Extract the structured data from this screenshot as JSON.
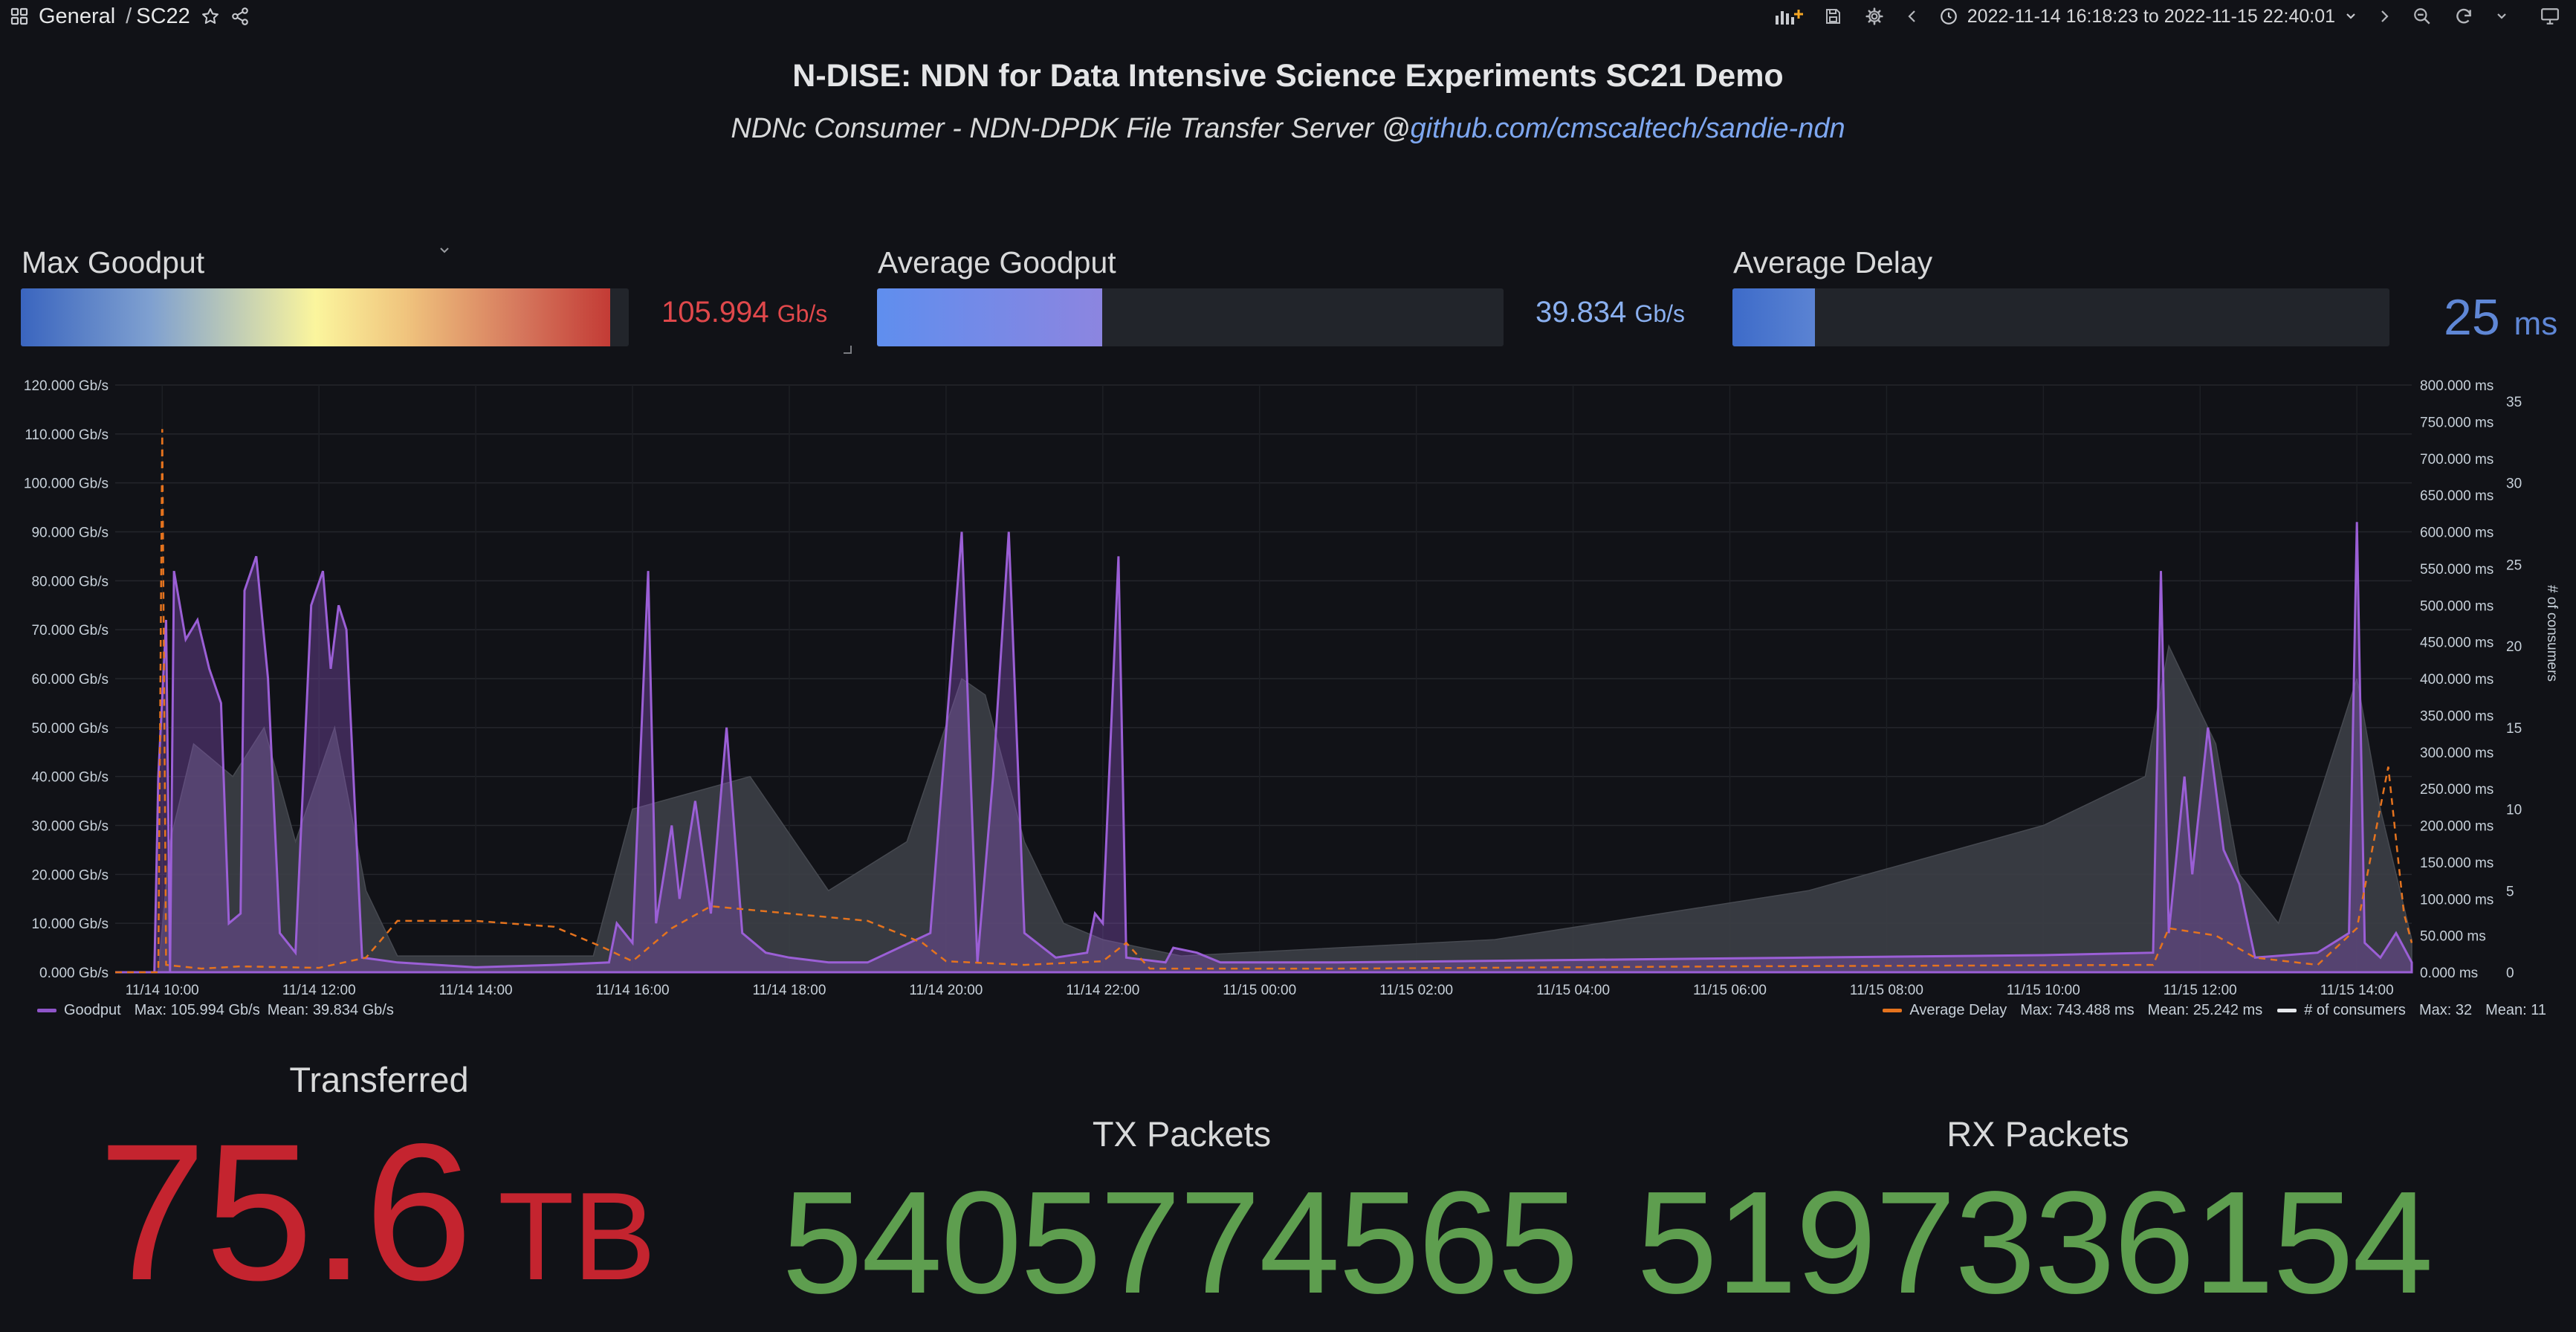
{
  "breadcrumb": {
    "folder": "General",
    "separator": "/",
    "dashboard": "SC22"
  },
  "toolbar": {
    "time_range": "2022-11-14 16:18:23 to 2022-11-15 22:40:01"
  },
  "header": {
    "title": "N-DISE: NDN for Data Intensive Science Experiments SC21 Demo",
    "subtitle_prefix": "NDNc Consumer - NDN-DPDK File Transfer Server @",
    "subtitle_link": "github.com/cmscaltech/sandie-ndn"
  },
  "gauges": [
    {
      "title": "Max Goodput",
      "value": "105.994",
      "unit": "Gb/s",
      "fraction": 0.97,
      "value_color": "#e0484b",
      "fill": "gradient"
    },
    {
      "title": "Average Goodput",
      "value": "39.834",
      "unit": "Gb/s",
      "fraction": 0.36,
      "value_color": "#8ab0f0",
      "fill": "blue-purple"
    },
    {
      "title": "Average Delay",
      "value": "25",
      "unit": "ms",
      "fraction": 0.125,
      "value_color": "#5f87d6",
      "fill": "blue"
    }
  ],
  "chart_data": {
    "type": "line",
    "x_ticks": [
      "11/14 10:00",
      "11/14 12:00",
      "11/14 14:00",
      "11/14 16:00",
      "11/14 18:00",
      "11/14 20:00",
      "11/14 22:00",
      "11/15 00:00",
      "11/15 02:00",
      "11/15 04:00",
      "11/15 06:00",
      "11/15 08:00",
      "11/15 10:00",
      "11/15 12:00",
      "11/15 14:00"
    ],
    "y_left_ticks": [
      "0.000 Gb/s",
      "10.000 Gb/s",
      "20.000 Gb/s",
      "30.000 Gb/s",
      "40.000 Gb/s",
      "50.000 Gb/s",
      "60.000 Gb/s",
      "70.000 Gb/s",
      "80.000 Gb/s",
      "90.000 Gb/s",
      "100.000 Gb/s",
      "110.000 Gb/s",
      "120.000 Gb/s"
    ],
    "y_right_ticks": [
      "0.000 ms",
      "50.000 ms",
      "100.000 ms",
      "150.000 ms",
      "200.000 ms",
      "250.000 ms",
      "300.000 ms",
      "350.000 ms",
      "400.000 ms",
      "450.000 ms",
      "500.000 ms",
      "550.000 ms",
      "600.000 ms",
      "650.000 ms",
      "700.000 ms",
      "750.000 ms",
      "800.000 ms"
    ],
    "y_right2_ticks": [
      "0",
      "5",
      "10",
      "15",
      "20",
      "25",
      "30",
      "35"
    ],
    "y_right2_label": "# of consumers",
    "ylim_left": [
      0,
      120
    ],
    "ylim_right": [
      0,
      800
    ],
    "ylim_right2": [
      0,
      36
    ],
    "x_range_hours": [
      9.4,
      38.7
    ],
    "colors": {
      "goodput": "#8f55c9",
      "delay": "#e5731e",
      "consumers": "#3c3f46"
    },
    "series": [
      {
        "name": "Goodput",
        "axis": "left",
        "unit": "Gb/s",
        "points": [
          [
            9.4,
            0
          ],
          [
            9.9,
            0
          ],
          [
            9.95,
            40
          ],
          [
            10.05,
            72
          ],
          [
            10.1,
            0
          ],
          [
            10.15,
            82
          ],
          [
            10.3,
            68
          ],
          [
            10.45,
            72
          ],
          [
            10.6,
            62
          ],
          [
            10.75,
            55
          ],
          [
            10.85,
            10
          ],
          [
            11.0,
            12
          ],
          [
            11.05,
            78
          ],
          [
            11.2,
            85
          ],
          [
            11.35,
            60
          ],
          [
            11.5,
            8
          ],
          [
            11.7,
            4
          ],
          [
            11.9,
            75
          ],
          [
            12.05,
            82
          ],
          [
            12.15,
            62
          ],
          [
            12.25,
            75
          ],
          [
            12.35,
            70
          ],
          [
            12.55,
            3
          ],
          [
            13.0,
            2
          ],
          [
            14.0,
            1
          ],
          [
            15.0,
            1.5
          ],
          [
            15.7,
            2
          ],
          [
            15.8,
            10
          ],
          [
            16.0,
            6
          ],
          [
            16.2,
            82
          ],
          [
            16.3,
            10
          ],
          [
            16.5,
            30
          ],
          [
            16.6,
            15
          ],
          [
            16.8,
            35
          ],
          [
            17.0,
            12
          ],
          [
            17.2,
            50
          ],
          [
            17.4,
            8
          ],
          [
            17.7,
            4
          ],
          [
            18.0,
            3
          ],
          [
            18.5,
            2
          ],
          [
            19.0,
            2
          ],
          [
            19.8,
            8
          ],
          [
            20.2,
            90
          ],
          [
            20.4,
            2
          ],
          [
            20.6,
            40
          ],
          [
            20.8,
            90
          ],
          [
            21.0,
            8
          ],
          [
            21.4,
            3
          ],
          [
            21.8,
            4
          ],
          [
            21.9,
            12
          ],
          [
            22.0,
            10
          ],
          [
            22.2,
            85
          ],
          [
            22.3,
            3
          ],
          [
            22.8,
            2
          ],
          [
            22.9,
            5
          ],
          [
            23.2,
            4
          ],
          [
            23.5,
            2
          ],
          [
            25.0,
            2
          ],
          [
            28.0,
            2.5
          ],
          [
            31.0,
            3
          ],
          [
            34.0,
            3.5
          ],
          [
            35.4,
            4
          ],
          [
            35.5,
            82
          ],
          [
            35.6,
            8
          ],
          [
            35.8,
            40
          ],
          [
            35.9,
            20
          ],
          [
            36.1,
            50
          ],
          [
            36.3,
            25
          ],
          [
            36.5,
            18
          ],
          [
            36.7,
            3
          ],
          [
            37.5,
            4
          ],
          [
            37.9,
            8
          ],
          [
            38.0,
            92
          ],
          [
            38.1,
            6
          ],
          [
            38.3,
            3
          ],
          [
            38.5,
            8
          ],
          [
            38.6,
            5
          ],
          [
            38.7,
            2
          ]
        ]
      },
      {
        "name": "Average Delay",
        "axis": "right",
        "unit": "ms",
        "points": [
          [
            9.4,
            0
          ],
          [
            9.95,
            0
          ],
          [
            10.0,
            740
          ],
          [
            10.05,
            10
          ],
          [
            10.5,
            5
          ],
          [
            11.0,
            8
          ],
          [
            12.0,
            6
          ],
          [
            12.6,
            20
          ],
          [
            13.0,
            70
          ],
          [
            14.0,
            70
          ],
          [
            15.0,
            62
          ],
          [
            15.6,
            35
          ],
          [
            16.0,
            15
          ],
          [
            16.5,
            60
          ],
          [
            17.0,
            90
          ],
          [
            18.0,
            80
          ],
          [
            19.0,
            70
          ],
          [
            19.7,
            40
          ],
          [
            20.0,
            15
          ],
          [
            21.0,
            10
          ],
          [
            22.0,
            15
          ],
          [
            22.3,
            40
          ],
          [
            22.6,
            5
          ],
          [
            25.0,
            5
          ],
          [
            30.0,
            8
          ],
          [
            35.4,
            10
          ],
          [
            35.6,
            60
          ],
          [
            36.2,
            50
          ],
          [
            36.7,
            20
          ],
          [
            37.5,
            10
          ],
          [
            38.0,
            60
          ],
          [
            38.4,
            280
          ],
          [
            38.6,
            80
          ],
          [
            38.7,
            40
          ]
        ]
      },
      {
        "name": "# of consumers",
        "axis": "right2",
        "unit": "",
        "points": [
          [
            9.4,
            0
          ],
          [
            9.95,
            0
          ],
          [
            10.1,
            8
          ],
          [
            10.4,
            14
          ],
          [
            10.9,
            12
          ],
          [
            11.3,
            15
          ],
          [
            11.7,
            8
          ],
          [
            12.2,
            15
          ],
          [
            12.6,
            5
          ],
          [
            13.0,
            1
          ],
          [
            15.5,
            1
          ],
          [
            16.0,
            10
          ],
          [
            17.5,
            12
          ],
          [
            18.5,
            5
          ],
          [
            19.5,
            8
          ],
          [
            20.2,
            18
          ],
          [
            20.5,
            17
          ],
          [
            21.0,
            8
          ],
          [
            21.5,
            3
          ],
          [
            22.0,
            2
          ],
          [
            23.0,
            1
          ],
          [
            27.0,
            2
          ],
          [
            31.0,
            5
          ],
          [
            34.0,
            9
          ],
          [
            35.3,
            12
          ],
          [
            35.6,
            20
          ],
          [
            36.2,
            14
          ],
          [
            36.5,
            6
          ],
          [
            37.0,
            3
          ],
          [
            37.6,
            12
          ],
          [
            38.0,
            18
          ],
          [
            38.3,
            10
          ],
          [
            38.6,
            4
          ],
          [
            38.7,
            2
          ]
        ]
      }
    ],
    "legend": {
      "goodput": {
        "name": "Goodput",
        "max": "Max: 105.994 Gb/s",
        "mean": "Mean: 39.834 Gb/s"
      },
      "delay": {
        "name": "Average Delay",
        "max": "Max: 743.488 ms",
        "mean": "Mean: 25.242 ms"
      },
      "consumers": {
        "name": "# of consumers",
        "max": "Max: 32",
        "mean": "Mean: 11"
      }
    }
  },
  "stats": {
    "transferred": {
      "title": "Transferred",
      "value": "75.6",
      "unit": "TB",
      "color": "#c4242f"
    },
    "tx": {
      "title": "TX Packets",
      "value": "5405774565",
      "color": "#5e9e4f"
    },
    "rx": {
      "title": "RX Packets",
      "value": "5197336154",
      "color": "#5e9e4f"
    }
  }
}
